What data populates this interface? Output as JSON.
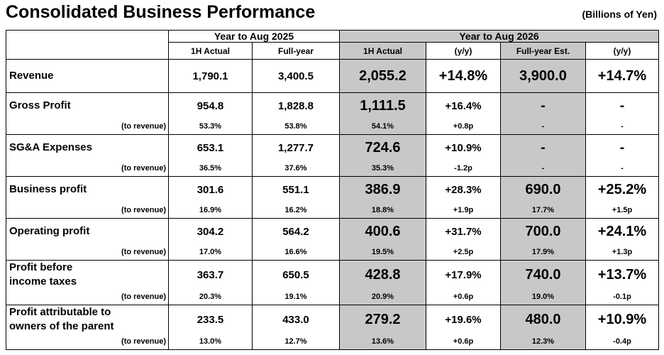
{
  "header": {
    "title": "Consolidated Business Performance",
    "unit": "(Billions of Yen)"
  },
  "table": {
    "groups": [
      "Year to Aug 2025",
      "Year to Aug 2026"
    ],
    "columns": [
      "1H Actual",
      "Full-year",
      "1H Actual",
      "(y/y)",
      "Full-year Est.",
      "(y/y)"
    ],
    "rows": [
      {
        "label": [
          "Revenue"
        ],
        "values": [
          "1,790.1",
          "3,400.5",
          "2,055.2",
          "+14.8%",
          "3,900.0",
          "+14.7%"
        ]
      },
      {
        "label": [
          "Gross Profit"
        ],
        "values": [
          "954.8",
          "1,828.8",
          "1,111.5",
          "+16.4%",
          "-",
          "-"
        ],
        "ratio_label": "(to revenue)",
        "ratio": [
          "53.3%",
          "53.8%",
          "54.1%",
          "+0.8p",
          "-",
          "-"
        ]
      },
      {
        "label": [
          "SG&A Expenses"
        ],
        "values": [
          "653.1",
          "1,277.7",
          "724.6",
          "+10.9%",
          "-",
          "-"
        ],
        "ratio_label": "(to revenue)",
        "ratio": [
          "36.5%",
          "37.6%",
          "35.3%",
          "-1.2p",
          "-",
          "-"
        ]
      },
      {
        "label": [
          "Business profit"
        ],
        "values": [
          "301.6",
          "551.1",
          "386.9",
          "+28.3%",
          "690.0",
          "+25.2%"
        ],
        "ratio_label": "(to revenue)",
        "ratio": [
          "16.9%",
          "16.2%",
          "18.8%",
          "+1.9p",
          "17.7%",
          "+1.5p"
        ]
      },
      {
        "label": [
          "Operating profit"
        ],
        "values": [
          "304.2",
          "564.2",
          "400.6",
          "+31.7%",
          "700.0",
          "+24.1%"
        ],
        "ratio_label": "(to revenue)",
        "ratio": [
          "17.0%",
          "16.6%",
          "19.5%",
          "+2.5p",
          "17.9%",
          "+1.3p"
        ]
      },
      {
        "label": [
          "Profit before",
          "income taxes"
        ],
        "values": [
          "363.7",
          "650.5",
          "428.8",
          "+17.9%",
          "740.0",
          "+13.7%"
        ],
        "ratio_label": "(to revenue)",
        "ratio": [
          "20.3%",
          "19.1%",
          "20.9%",
          "+0.6p",
          "19.0%",
          "-0.1p"
        ]
      },
      {
        "label": [
          "Profit attributable to",
          "owners of the parent"
        ],
        "values": [
          "233.5",
          "433.0",
          "279.2",
          "+19.6%",
          "480.0",
          "+10.9%"
        ],
        "ratio_label": "(to revenue)",
        "ratio": [
          "13.0%",
          "12.7%",
          "13.6%",
          "+0.6p",
          "12.3%",
          "-0.4p"
        ]
      }
    ]
  }
}
